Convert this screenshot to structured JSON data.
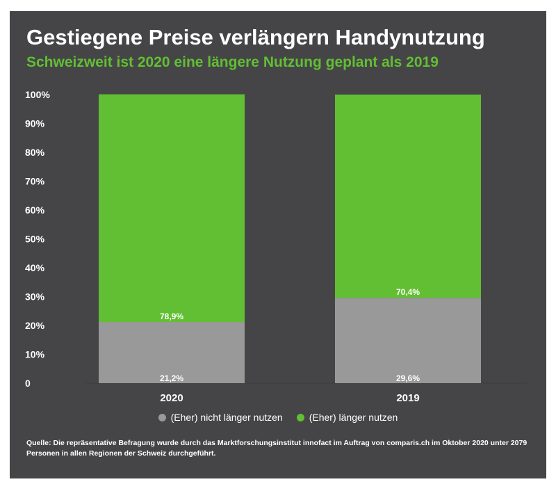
{
  "title": "Gestiegene Preise verlängern Handynutzung",
  "subtitle": "Schweizweit ist 2020 eine längere Nutzung geplant als 2019",
  "source": "Quelle: Die repräsentative Befragung wurde durch das Marktforschungsinstitut innofact im Auftrag von comparis.ch im Oktober 2020 unter 2079 Personen in allen Regionen der Schweiz durchgeführt.",
  "colors": {
    "background": "#454547",
    "green": "#62bf33",
    "grey": "#999999",
    "text": "#ffffff"
  },
  "chart_data": {
    "type": "bar",
    "stacked": true,
    "categories": [
      "2020",
      "2019"
    ],
    "series": [
      {
        "name": "(Eher) nicht länger nutzen",
        "values": [
          21.2,
          29.6
        ],
        "labels": [
          "21,2%",
          "29,6%"
        ],
        "color": "#999999"
      },
      {
        "name": "(Eher) länger nutzen",
        "values": [
          78.9,
          70.4
        ],
        "labels": [
          "78,9%",
          "70,4%"
        ],
        "color": "#62bf33"
      }
    ],
    "ylim": [
      0,
      100
    ],
    "yticks": [
      {
        "value": 0,
        "label": "0"
      },
      {
        "value": 10,
        "label": "10%"
      },
      {
        "value": 20,
        "label": "20%"
      },
      {
        "value": 30,
        "label": "30%"
      },
      {
        "value": 40,
        "label": "40%"
      },
      {
        "value": 50,
        "label": "50%"
      },
      {
        "value": 60,
        "label": "60%"
      },
      {
        "value": 70,
        "label": "70%"
      },
      {
        "value": 80,
        "label": "80%"
      },
      {
        "value": 90,
        "label": "90%"
      },
      {
        "value": 100,
        "label": "100%"
      }
    ],
    "grid": false,
    "legend_position": "bottom"
  }
}
